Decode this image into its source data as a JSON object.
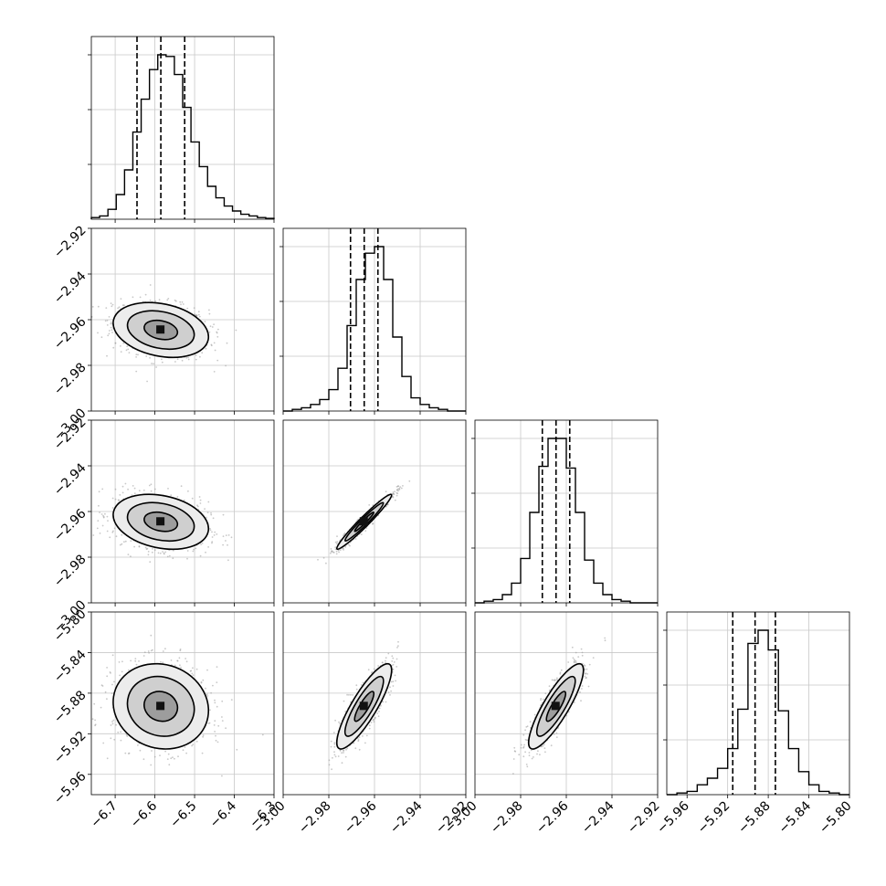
{
  "chart_data": {
    "type": "corner",
    "params": 4,
    "ranges": [
      [
        -6.76,
        -6.3
      ],
      [
        -3.0,
        -2.92
      ],
      [
        -3.0,
        -2.92
      ],
      [
        -5.98,
        -5.8
      ]
    ],
    "tick_labels": [
      [
        "−6.7",
        "−6.6",
        "−6.5",
        "−6.4",
        "−6.3"
      ],
      [
        "−3.00",
        "−2.98",
        "−2.96",
        "−2.94",
        "−2.92"
      ],
      [
        "−3.00",
        "−2.98",
        "−2.96",
        "−2.94",
        "−2.92"
      ],
      [
        "−5.96",
        "−5.92",
        "−5.88",
        "−5.84",
        "−5.80"
      ]
    ],
    "tick_values": [
      [
        -6.7,
        -6.6,
        -6.5,
        -6.4,
        -6.3
      ],
      [
        -3.0,
        -2.98,
        -2.96,
        -2.94,
        -2.92
      ],
      [
        -3.0,
        -2.98,
        -2.96,
        -2.94,
        -2.92
      ],
      [
        -5.96,
        -5.92,
        -5.88,
        -5.84,
        -5.8
      ]
    ],
    "quantiles": [
      [
        -6.645,
        -6.585,
        -6.525
      ],
      [
        -2.9705,
        -2.9645,
        -2.9585
      ],
      [
        -2.9705,
        -2.9645,
        -2.9585
      ],
      [
        -5.915,
        -5.893,
        -5.873
      ]
    ],
    "histograms": [
      [
        0.01,
        0.02,
        0.06,
        0.15,
        0.3,
        0.53,
        0.73,
        0.91,
        1.0,
        0.99,
        0.88,
        0.68,
        0.47,
        0.32,
        0.2,
        0.13,
        0.08,
        0.05,
        0.03,
        0.02,
        0.01,
        0.005
      ],
      [
        0.0,
        0.01,
        0.02,
        0.04,
        0.07,
        0.13,
        0.26,
        0.52,
        0.8,
        0.96,
        1.0,
        0.8,
        0.45,
        0.21,
        0.08,
        0.04,
        0.02,
        0.01,
        0.0,
        0.0
      ],
      [
        0.0,
        0.01,
        0.02,
        0.05,
        0.12,
        0.27,
        0.55,
        0.83,
        1.0,
        1.0,
        0.82,
        0.55,
        0.26,
        0.12,
        0.05,
        0.02,
        0.01,
        0.0,
        0.0,
        0.0
      ],
      [
        0.0,
        0.01,
        0.02,
        0.06,
        0.1,
        0.16,
        0.28,
        0.52,
        0.92,
        1.0,
        0.88,
        0.51,
        0.28,
        0.14,
        0.06,
        0.02,
        0.01,
        0.0
      ]
    ],
    "correlations": {
      "1-0": -0.25,
      "2-0": -0.25,
      "2-1": 0.97,
      "3-0": -0.1,
      "3-1": 0.85,
      "3-2": 0.85
    },
    "grid": true
  }
}
